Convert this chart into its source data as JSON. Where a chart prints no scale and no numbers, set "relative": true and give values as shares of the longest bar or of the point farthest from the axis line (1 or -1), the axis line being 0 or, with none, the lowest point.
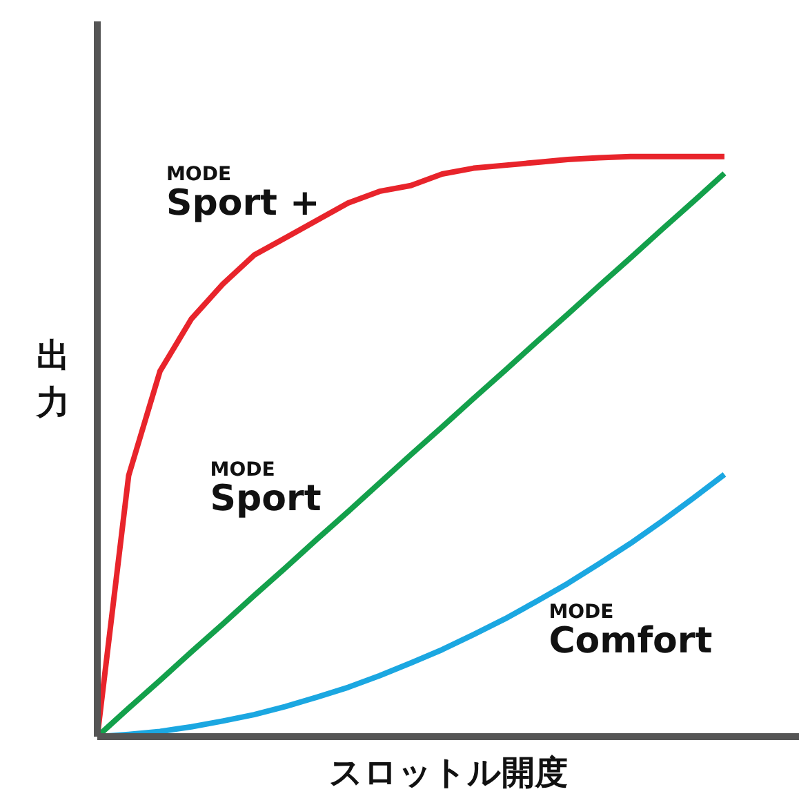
{
  "chart_data": {
    "type": "line",
    "relative": true,
    "xlabel": "スロットル開度",
    "ylabel": "出力",
    "marker": "none",
    "line_style": "solid",
    "categories": [
      null,
      null,
      null,
      null,
      null,
      null,
      null,
      null,
      null,
      null,
      null,
      null,
      null,
      null,
      null,
      null,
      null,
      null,
      null,
      null,
      null
    ],
    "series": [
      {
        "name": "MODE\nSport +",
        "color": "#e8242b",
        "values": [
          0,
          0.45,
          0.63,
          0.72,
          0.78,
          0.83,
          0.86,
          0.89,
          0.92,
          0.94,
          0.95,
          0.97,
          0.98,
          0.985,
          0.99,
          0.995,
          0.998,
          1,
          1,
          1,
          1
        ]
      },
      {
        "name": "MODE\nSport",
        "color": "#13a04b",
        "values": [
          0,
          0.049,
          0.097,
          0.146,
          0.194,
          0.243,
          0.291,
          0.34,
          0.388,
          0.437,
          0.486,
          0.534,
          0.583,
          0.631,
          0.68,
          0.728,
          0.777,
          0.825,
          0.874,
          0.922,
          0.971
        ]
      },
      {
        "name": "MODE\nComfort",
        "color": "#1ba7e1",
        "values": [
          0,
          0.004,
          0.009,
          0.017,
          0.027,
          0.038,
          0.052,
          0.068,
          0.085,
          0.105,
          0.127,
          0.15,
          0.176,
          0.203,
          0.233,
          0.264,
          0.298,
          0.333,
          0.371,
          0.411,
          0.452
        ]
      }
    ]
  }
}
